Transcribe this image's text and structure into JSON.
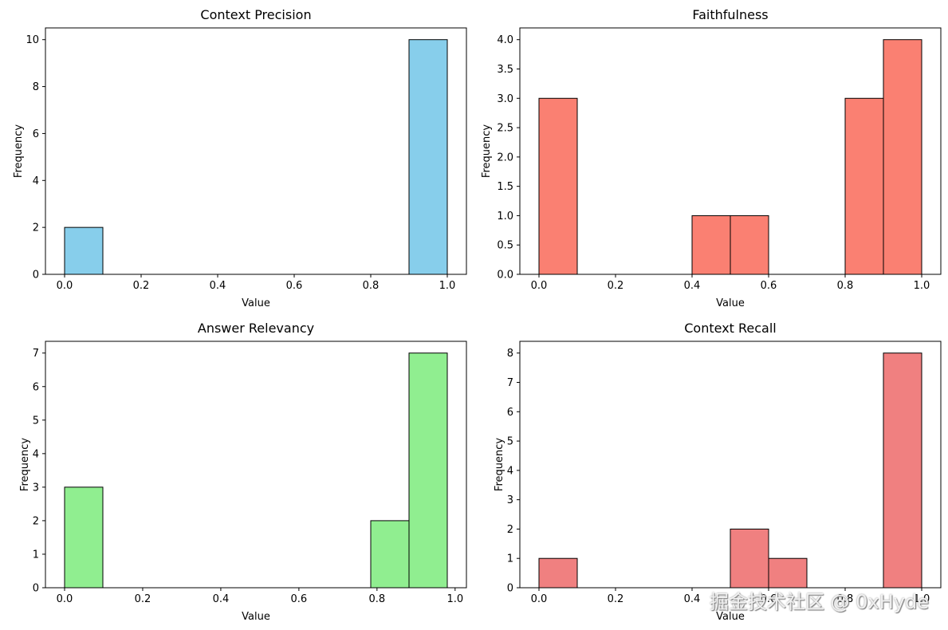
{
  "watermark": "掘金技术社区 @ 0xHyde",
  "chart_data": [
    {
      "type": "bar",
      "title": "Context Precision",
      "xlabel": "Value",
      "ylabel": "Frequency",
      "color": "#87ceeb",
      "bins": [
        {
          "start": 0.0,
          "end": 0.1,
          "count": 2
        },
        {
          "start": 0.9,
          "end": 1.0,
          "count": 10
        }
      ],
      "xlim": [
        -0.05,
        1.05
      ],
      "ylim": [
        0,
        10.5
      ],
      "xticks": [
        0.0,
        0.2,
        0.4,
        0.6,
        0.8,
        1.0
      ],
      "yticks": [
        0,
        2,
        4,
        6,
        8,
        10
      ]
    },
    {
      "type": "bar",
      "title": "Faithfulness",
      "xlabel": "Value",
      "ylabel": "Frequency",
      "color": "#fa8072",
      "bins": [
        {
          "start": 0.0,
          "end": 0.1,
          "count": 3
        },
        {
          "start": 0.4,
          "end": 0.5,
          "count": 1
        },
        {
          "start": 0.5,
          "end": 0.6,
          "count": 1
        },
        {
          "start": 0.8,
          "end": 0.9,
          "count": 3
        },
        {
          "start": 0.9,
          "end": 1.0,
          "count": 4
        }
      ],
      "xlim": [
        -0.05,
        1.05
      ],
      "ylim": [
        0,
        4.2
      ],
      "xticks": [
        0.0,
        0.2,
        0.4,
        0.6,
        0.8,
        1.0
      ],
      "yticks": [
        0.0,
        0.5,
        1.0,
        1.5,
        2.0,
        2.5,
        3.0,
        3.5,
        4.0
      ],
      "ytick_decimals": 1
    },
    {
      "type": "bar",
      "title": "Answer Relevancy",
      "xlabel": "Value",
      "ylabel": "Frequency",
      "color": "#90ee90",
      "bins": [
        {
          "start": 0.0,
          "end": 0.098,
          "count": 3
        },
        {
          "start": 0.784,
          "end": 0.882,
          "count": 2
        },
        {
          "start": 0.882,
          "end": 0.98,
          "count": 7
        }
      ],
      "xlim": [
        -0.049,
        1.029
      ],
      "ylim": [
        0,
        7.35
      ],
      "xticks": [
        0.0,
        0.2,
        0.4,
        0.6,
        0.8,
        1.0
      ],
      "yticks": [
        0,
        1,
        2,
        3,
        4,
        5,
        6,
        7
      ]
    },
    {
      "type": "bar",
      "title": "Context Recall",
      "xlabel": "Value",
      "ylabel": "Frequency",
      "color": "#f08080",
      "bins": [
        {
          "start": 0.0,
          "end": 0.1,
          "count": 1
        },
        {
          "start": 0.5,
          "end": 0.6,
          "count": 2
        },
        {
          "start": 0.6,
          "end": 0.7,
          "count": 1
        },
        {
          "start": 0.9,
          "end": 1.0,
          "count": 8
        }
      ],
      "xlim": [
        -0.05,
        1.05
      ],
      "ylim": [
        0,
        8.4
      ],
      "xticks": [
        0.0,
        0.2,
        0.4,
        0.6,
        0.8,
        1.0
      ],
      "yticks": [
        0,
        1,
        2,
        3,
        4,
        5,
        6,
        7,
        8
      ]
    }
  ]
}
